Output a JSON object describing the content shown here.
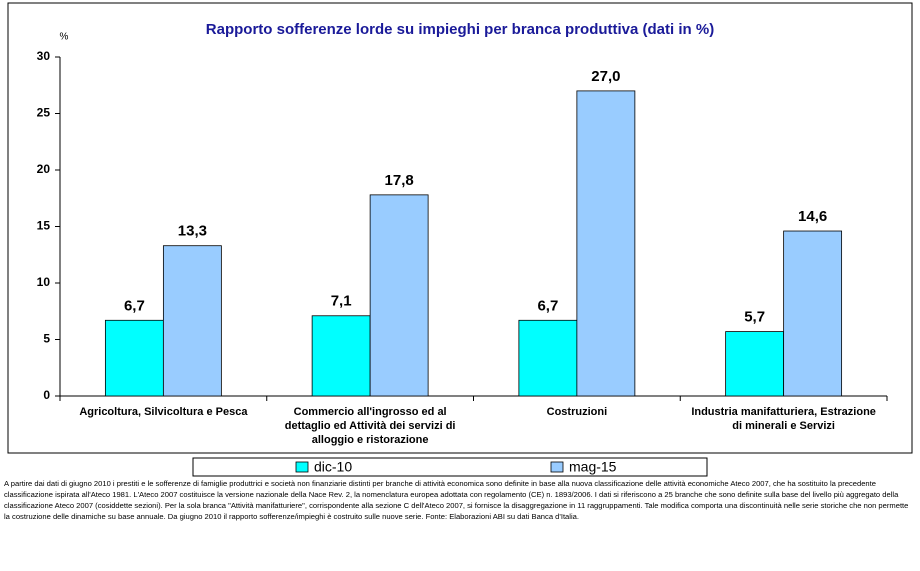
{
  "chart_data": {
    "type": "bar",
    "title": "Rapporto sofferenze lorde su impieghi per branca produttiva (dati in %)",
    "y_label": "%",
    "categories": [
      "Agricoltura, Silvicoltura e Pesca",
      "Commercio all'ingrosso ed al dettaglio ed Attività dei servizi di alloggio e ristorazione",
      "Costruzioni",
      "Industria manifatturiera, Estrazione di minerali e Servizi"
    ],
    "series": [
      {
        "name": "dic-10",
        "color": "#00ffff",
        "values": [
          6.7,
          7.1,
          6.7,
          5.7
        ],
        "value_labels": [
          "6,7",
          "7,1",
          "6,7",
          "5,7"
        ]
      },
      {
        "name": "mag-15",
        "color": "#99ccff",
        "values": [
          13.3,
          17.8,
          27.0,
          14.6
        ],
        "value_labels": [
          "13,3",
          "17,8",
          "27,0",
          "14,6"
        ]
      }
    ],
    "ylim": [
      0,
      30
    ],
    "yticks": [
      0,
      5,
      10,
      15,
      20,
      25,
      30
    ],
    "grid": false,
    "legend": "bottom",
    "note": "A partire dai dati di giugno 2010 i prestiti e le sofferenze di famiglie produttrici e società non finanziarie distinti per branche di attività economica sono definite in base alla nuova classificazione delle attività economiche Ateco 2007, che ha sostituito la precedente classificazione ispirata all'Ateco 1981. L'Ateco 2007 costituisce la versione nazionale della Nace Rev. 2, la nomenclatura europea adottata con regolamento (CE) n. 1893/2006. I dati si riferiscono a 25 branche che sono definite sulla base del livello più aggregato della classificazione Ateco 2007 (cosiddette sezioni). Per la sola branca \"Attività manifatturiere\", corrispondente alla sezione C dell'Ateco 2007, si fornisce la disaggregazione in 11 raggruppamenti. Tale modifica comporta una discontinuità nelle serie storiche che non permette la costruzione delle dinamiche su base annuale. Da giugno 2010 il rapporto sofferenze/impieghi è costruito sulle nuove serie. Fonte: Elaborazioni ABI su dati Banca d'Italia."
  }
}
